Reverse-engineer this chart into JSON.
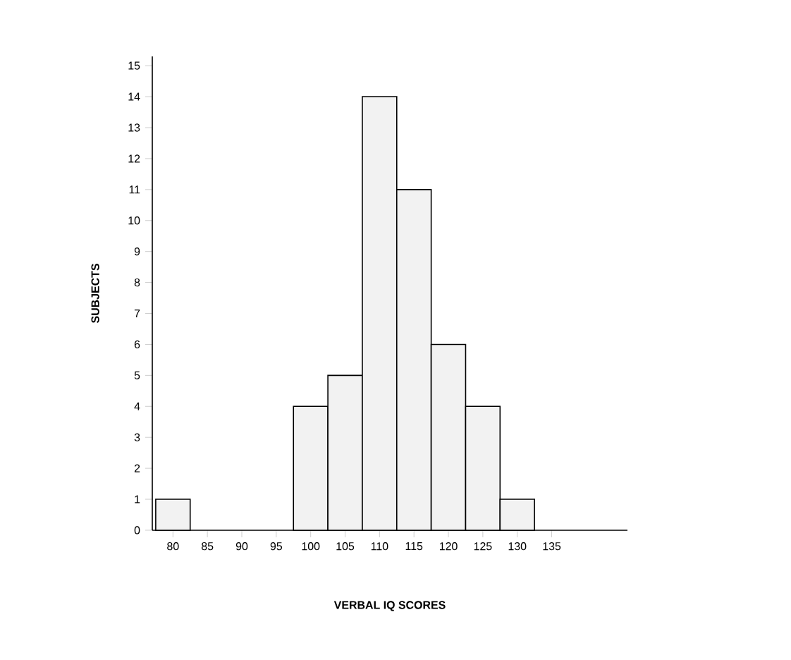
{
  "chart_data": {
    "type": "histogram",
    "xlabel": "VERBAL  IQ  SCORES",
    "ylabel": "SUBJECTS",
    "bins": [
      77.5,
      82.5,
      87.5,
      92.5,
      97.5,
      102.5,
      107.5,
      112.5,
      117.5,
      122.5,
      127.5,
      132.5
    ],
    "values": [
      1,
      0,
      0,
      0,
      4,
      5,
      14,
      11,
      6,
      4,
      1
    ],
    "color": "#f2f2f2",
    "xlim": [
      77,
      146
    ],
    "ylim": [
      0,
      15.3
    ],
    "xticks": [
      80,
      85,
      90,
      95,
      100,
      105,
      110,
      115,
      120,
      125,
      130,
      135
    ],
    "yticks": [
      0,
      1,
      2,
      3,
      4,
      5,
      6,
      7,
      8,
      9,
      10,
      11,
      12,
      13,
      14,
      15
    ],
    "grid": false
  }
}
